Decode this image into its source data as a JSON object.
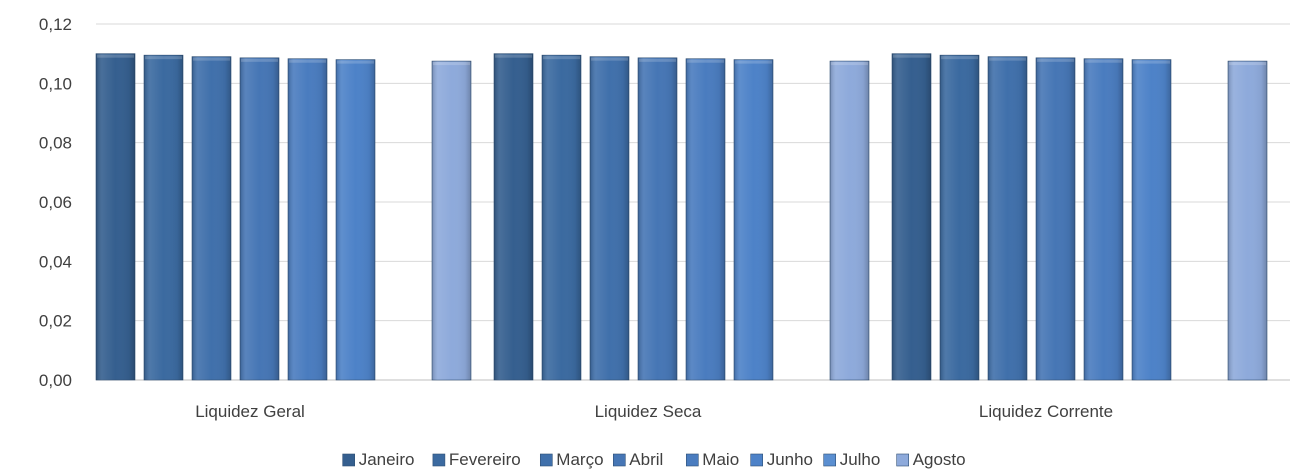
{
  "chart_data": {
    "type": "bar",
    "categories": [
      "Liquidez Geral",
      "Liquidez Seca",
      "Liquidez Corrente"
    ],
    "series": [
      {
        "name": "Janeiro",
        "values": [
          0.11,
          0.11,
          0.11
        ],
        "color": "#355f8f"
      },
      {
        "name": "Fevereiro",
        "values": [
          0.1095,
          0.1095,
          0.1095
        ],
        "color": "#3b6aa0"
      },
      {
        "name": "Março",
        "values": [
          0.109,
          0.109,
          0.109
        ],
        "color": "#4070ab"
      },
      {
        "name": "Abril",
        "values": [
          0.1086,
          0.1086,
          0.1086
        ],
        "color": "#4676b5"
      },
      {
        "name": "Maio",
        "values": [
          0.1083,
          0.1083,
          0.1083
        ],
        "color": "#4a7cbf"
      },
      {
        "name": "Junho",
        "values": [
          0.108,
          0.108,
          0.108
        ],
        "color": "#4d82c8"
      },
      {
        "name": "Julho",
        "values": [
          null,
          null,
          null
        ],
        "color": "#5b8fd1"
      },
      {
        "name": "Agosto",
        "values": [
          0.1075,
          0.1075,
          0.1075
        ],
        "color": "#8eaadb"
      }
    ],
    "ylim": [
      0,
      0.12
    ],
    "yticks": [
      "0,00",
      "0,02",
      "0,04",
      "0,06",
      "0,08",
      "0,10",
      "0,12"
    ],
    "grid": true,
    "legend": "bottom"
  }
}
